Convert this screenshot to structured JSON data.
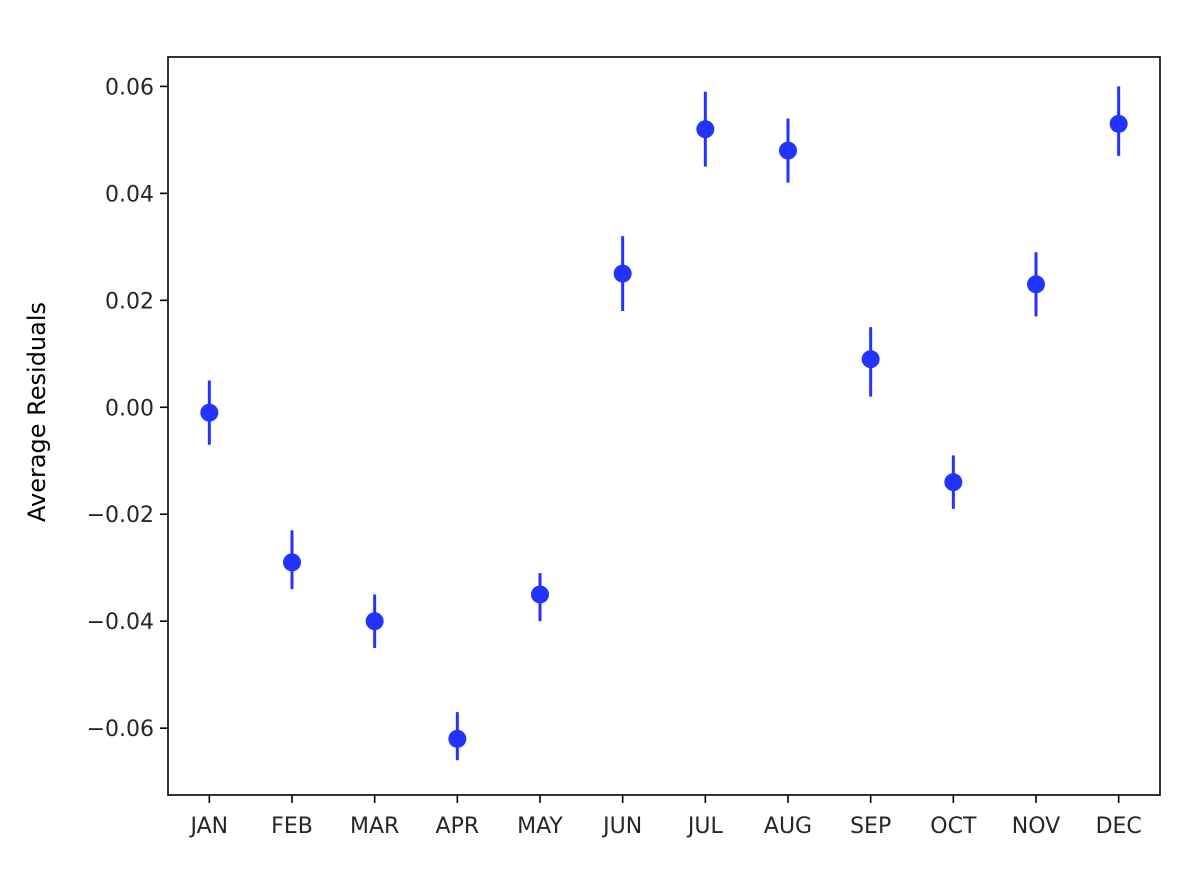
{
  "chart_data": {
    "type": "scatter",
    "title": "",
    "xlabel": "",
    "ylabel": "Average Residuals",
    "categories": [
      "JAN",
      "FEB",
      "MAR",
      "APR",
      "MAY",
      "JUN",
      "JUL",
      "AUG",
      "SEP",
      "OCT",
      "NOV",
      "DEC"
    ],
    "values": [
      -0.001,
      -0.029,
      -0.04,
      -0.062,
      -0.035,
      0.025,
      0.052,
      0.048,
      0.009,
      -0.014,
      0.023,
      0.053
    ],
    "err_low": [
      -0.007,
      -0.034,
      -0.045,
      -0.066,
      -0.04,
      0.018,
      0.045,
      0.042,
      0.002,
      -0.019,
      0.017,
      0.047
    ],
    "err_high": [
      0.005,
      -0.023,
      -0.035,
      -0.057,
      -0.031,
      0.032,
      0.059,
      0.054,
      0.015,
      -0.009,
      0.029,
      0.06
    ],
    "ylim": [
      -0.0725,
      0.0655
    ],
    "yticks": [
      -0.06,
      -0.04,
      -0.02,
      0.0,
      0.02,
      0.04,
      0.06
    ],
    "ytick_labels": [
      "−0.06",
      "−0.04",
      "−0.02",
      "0.00",
      "0.02",
      "0.04",
      "0.06"
    ],
    "grid": false,
    "marker_color": "#2233ff",
    "axis_color": "#000000"
  }
}
